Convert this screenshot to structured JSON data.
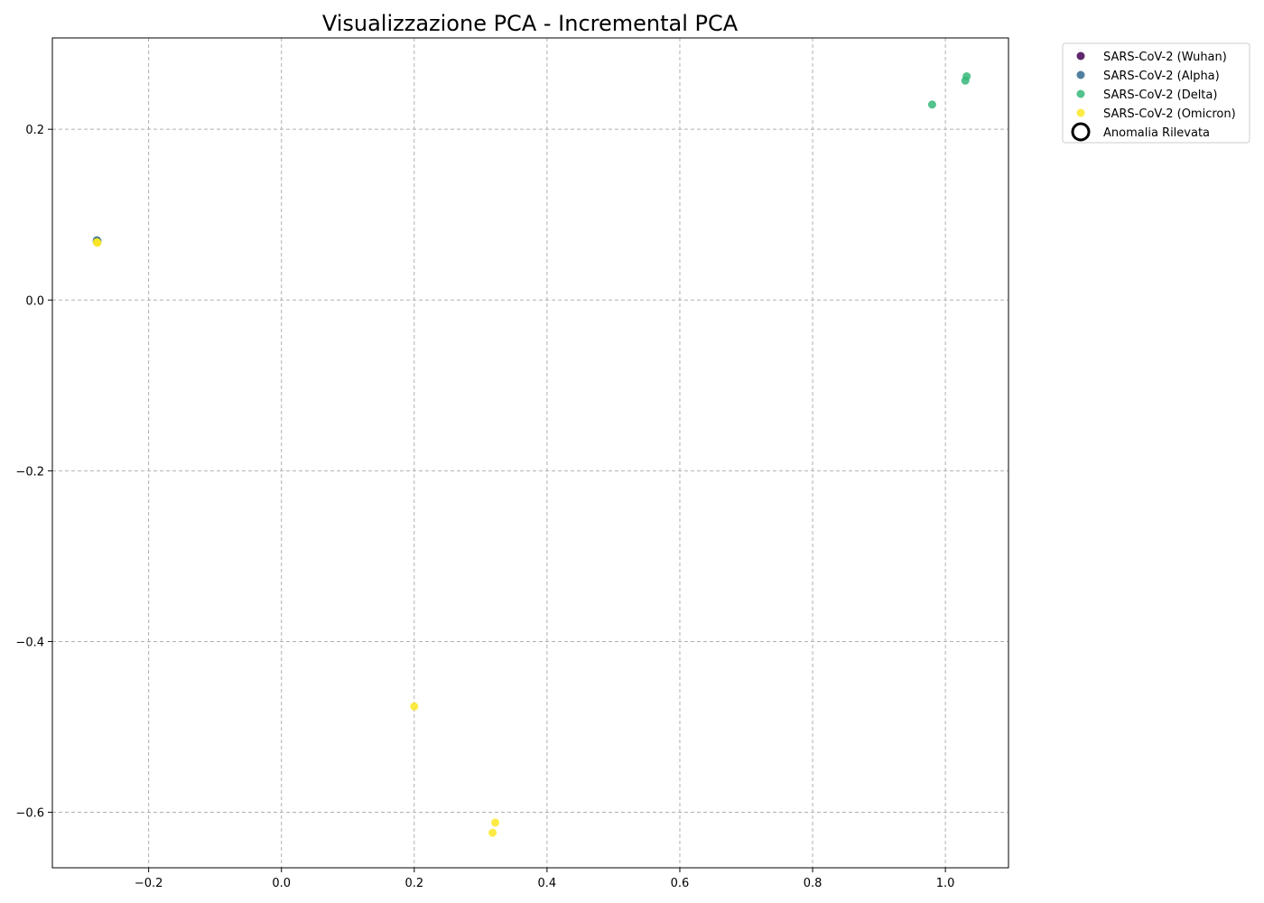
{
  "chart_data": {
    "type": "scatter",
    "title": "Visualizzazione PCA - Incremental PCA",
    "xlabel": "",
    "ylabel": "",
    "xlim": [
      -0.345,
      1.095
    ],
    "ylim": [
      -0.665,
      0.307
    ],
    "xticks": [
      -0.2,
      0.0,
      0.2,
      0.4,
      0.6,
      0.8,
      1.0
    ],
    "yticks": [
      -0.6,
      -0.4,
      -0.2,
      0.0,
      0.2
    ],
    "xtick_labels": [
      "−0.2",
      "0.0",
      "0.2",
      "0.4",
      "0.6",
      "0.8",
      "1.0"
    ],
    "ytick_labels": [
      "−0.6",
      "−0.4",
      "−0.2",
      "0.0",
      "0.2"
    ],
    "grid": true,
    "legend_position": "outside-top-right",
    "series": [
      {
        "name": "SARS-CoV-2 (Wuhan)",
        "color": "#440154",
        "points": [
          [
            -0.278,
            0.069
          ]
        ]
      },
      {
        "name": "SARS-CoV-2 (Alpha)",
        "color": "#31688e",
        "points": [
          [
            -0.278,
            0.07
          ],
          [
            -0.277,
            0.069
          ]
        ]
      },
      {
        "name": "SARS-CoV-2 (Delta)",
        "color": "#35b779",
        "points": [
          [
            0.98,
            0.229
          ],
          [
            1.03,
            0.257
          ],
          [
            1.032,
            0.262
          ],
          [
            -0.278,
            0.068
          ]
        ]
      },
      {
        "name": "SARS-CoV-2 (Omicron)",
        "color": "#fde725",
        "points": [
          [
            -0.278,
            0.068
          ],
          [
            -0.277,
            0.067
          ],
          [
            0.2,
            -0.476
          ],
          [
            0.322,
            -0.612
          ],
          [
            0.318,
            -0.624
          ]
        ]
      }
    ],
    "anomaly_legend_label": "Anomalia Rilevata"
  }
}
